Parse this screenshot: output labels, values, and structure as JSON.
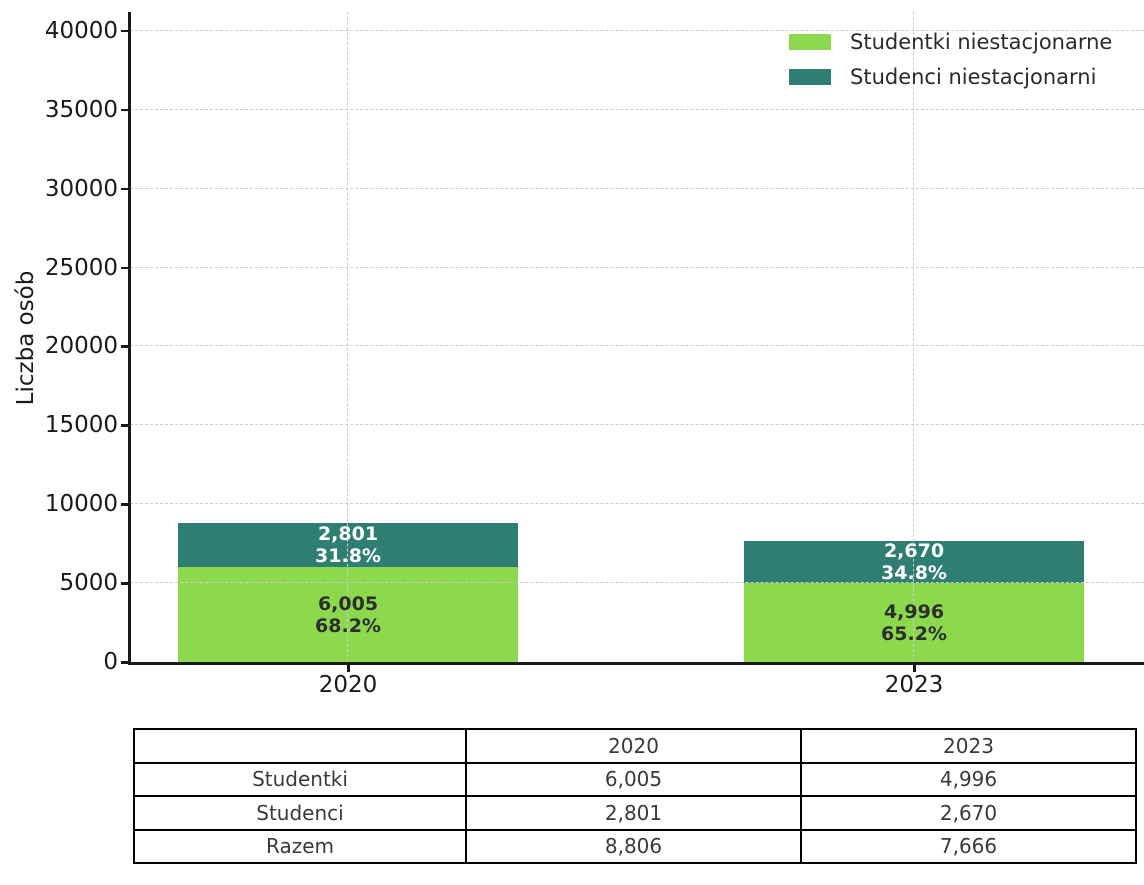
{
  "chart_data": {
    "type": "bar",
    "stacked": true,
    "categories": [
      "2020",
      "2023"
    ],
    "series": [
      {
        "name": "Studentki niestacjonarne",
        "color": "#8CD94E",
        "values": [
          6005,
          4996
        ],
        "bar_labels": [
          [
            "6,005",
            "68.2%"
          ],
          [
            "4,996",
            "65.2%"
          ]
        ],
        "label_color": "#2e2e2e"
      },
      {
        "name": "Studenci niestacjonarni",
        "color": "#2E7E74",
        "values": [
          2801,
          2670
        ],
        "bar_labels": [
          [
            "2,801",
            "31.8%"
          ],
          [
            "2,670",
            "34.8%"
          ]
        ],
        "label_color": "#ffffff"
      }
    ],
    "totals": [
      8806,
      7666
    ],
    "title": "",
    "xlabel": "",
    "ylabel": "Liczba osób",
    "yticks": [
      0,
      5000,
      10000,
      15000,
      20000,
      25000,
      30000,
      35000,
      40000
    ],
    "ytick_labels": [
      "0",
      "5000",
      "10000",
      "15000",
      "20000",
      "25000",
      "30000",
      "35000",
      "40000"
    ],
    "ylim": [
      0,
      41200
    ],
    "grid": "dashed",
    "legend_position": "upper right"
  },
  "table": {
    "header": [
      "",
      "2020",
      "2023"
    ],
    "rows": [
      {
        "label": "Studentki",
        "values": [
          "6,005",
          "4,996"
        ]
      },
      {
        "label": "Studenci",
        "values": [
          "2,801",
          "2,670"
        ]
      },
      {
        "label": "Razem",
        "values": [
          "8,806",
          "7,666"
        ]
      }
    ]
  },
  "colors": {
    "studentki": "#8CD94E",
    "studenci": "#2E7E74",
    "grid": "#cccccc",
    "axis": "#1a1a1a",
    "table_border": "#000000",
    "background": "#ffffff"
  }
}
